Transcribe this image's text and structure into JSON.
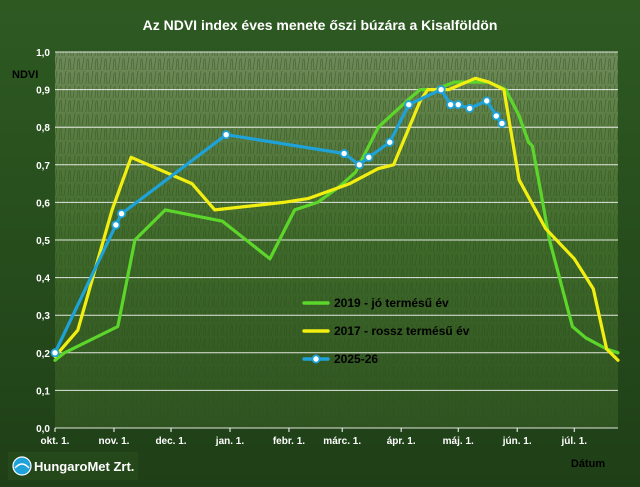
{
  "chart_data": {
    "type": "line",
    "title": "Az NDVI index éves menete őszi búzára a Kisalföldön",
    "ylabel": "NDVI",
    "xlabel": "Dátum",
    "ylim": [
      0,
      1
    ],
    "y_ticks": [
      "0,0",
      "0,1",
      "0,2",
      "0,3",
      "0,4",
      "0,5",
      "0,6",
      "0,7",
      "0,8",
      "0,9",
      "1,0"
    ],
    "x_ticks": [
      "okt. 1.",
      "nov. 1.",
      "dec. 1.",
      "jan. 1.",
      "febr. 1.",
      "márc. 1.",
      "ápr. 1.",
      "máj. 1.",
      "jún. 1.",
      "júl. 1."
    ],
    "x_unit": "day of season (0 = okt. 1.)",
    "xlim": [
      0,
      296
    ],
    "grid": true,
    "legend_position": "center-right",
    "series": [
      {
        "name": "2019 - jó termésű év",
        "color": "#5cd62a",
        "marker": "none",
        "x": [
          0,
          5,
          33,
          42,
          58,
          88,
          113,
          126,
          138,
          149,
          158,
          170,
          185,
          192,
          200,
          210,
          218,
          222,
          228,
          237,
          244,
          249,
          251,
          260,
          272,
          279,
          290,
          296
        ],
        "y": [
          0.18,
          0.2,
          0.27,
          0.5,
          0.58,
          0.55,
          0.45,
          0.58,
          0.6,
          0.64,
          0.68,
          0.8,
          0.87,
          0.9,
          0.9,
          0.92,
          0.92,
          0.92,
          0.92,
          0.9,
          0.83,
          0.76,
          0.75,
          0.5,
          0.27,
          0.24,
          0.21,
          0.2
        ]
      },
      {
        "name": "2017 - rossz termésű év",
        "color": "#f2ef10",
        "marker": "none",
        "x": [
          0,
          12,
          30,
          40,
          72,
          84,
          120,
          133,
          155,
          170,
          178,
          192,
          196,
          202,
          207,
          221,
          228,
          236,
          244,
          258,
          273,
          283,
          290,
          296
        ],
        "y": [
          0.19,
          0.26,
          0.58,
          0.72,
          0.65,
          0.58,
          0.6,
          0.61,
          0.65,
          0.69,
          0.7,
          0.87,
          0.9,
          0.9,
          0.9,
          0.93,
          0.92,
          0.9,
          0.66,
          0.53,
          0.45,
          0.37,
          0.21,
          0.18
        ]
      },
      {
        "name": "2025-26",
        "color": "#1ea2d8",
        "marker": "circle",
        "x": [
          0,
          32,
          35,
          90,
          152,
          160,
          165,
          176,
          186,
          203,
          208,
          212,
          218,
          227,
          232,
          235
        ],
        "y": [
          0.2,
          0.54,
          0.57,
          0.78,
          0.73,
          0.7,
          0.72,
          0.76,
          0.86,
          0.9,
          0.86,
          0.86,
          0.85,
          0.87,
          0.83,
          0.81
        ]
      }
    ],
    "logo_text": "HungaroMet Zrt."
  }
}
